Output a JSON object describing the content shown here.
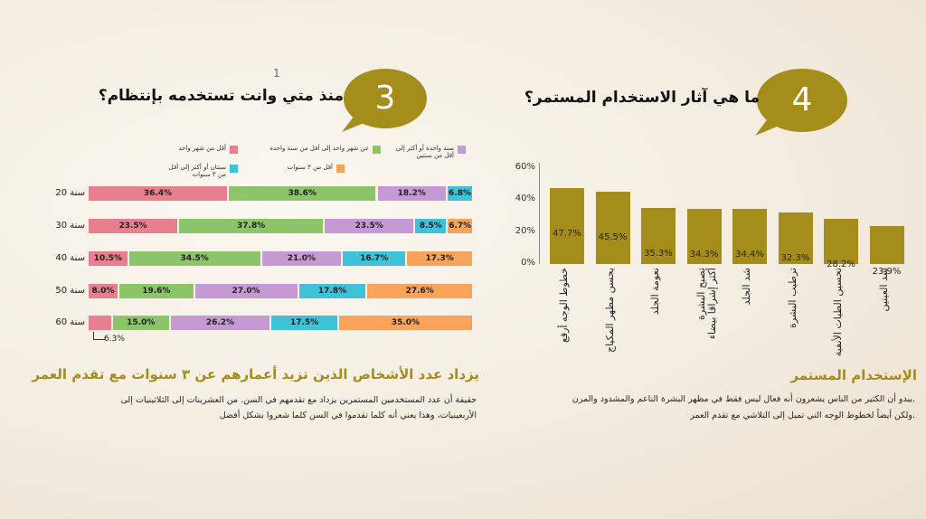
{
  "stray_mark": "1",
  "left_panel": {
    "bubble_number": "3",
    "title": "منذ متي وانت تستخدمه بإنتظام؟",
    "legend": [
      {
        "label": "أقل من شهر واحد",
        "color": "#e77f8e"
      },
      {
        "label": "عن شهر واحد إلى أقل من سنة واحدة",
        "color": "#8cc46a"
      },
      {
        "label": "سنة واحدة أو أكثر إلى أقل من سنتين",
        "color": "#c59ad4"
      },
      {
        "label": "سنتان أو أكثر إلى أقل من ٣ سنوات",
        "color": "#3fc1d8"
      },
      {
        "label": "أقل من ٣ سنوات",
        "color": "#f7a45a"
      }
    ],
    "note_label": "6.3%",
    "heading": "يزداد عدد الأشخاص الذين تزيد أعمارهم عن ٣ سنوات مع تقدم العمر",
    "paragraph": "حقيقة أن عدد المستخدمين المستمرين يزداد مع تقدمهم في السن. من العشرينات إلى الثلاثينيات إلى الأربعينيات، وهذا يعني أنه كلما تقدموا في السن كلما شعروا بشكل أفضل"
  },
  "right_panel": {
    "bubble_number": "4",
    "title": "ما هي آثار الاستخدام المستمر؟",
    "heading": "الإستخدام المستمر",
    "paragraph_line1": ".يبدو أن الكثير من الناس يشعرون أنه فعال ليس فقط في مظهر   البشرة الناعم والمشدود والمرن",
    "paragraph_line2": ".ولكن أيضاً لخطوط الوجه التي تميل إلى التلاشي مع تقدم العمر"
  },
  "chart_data": [
    {
      "type": "bar",
      "stacked": true,
      "orientation": "horizontal",
      "categories": [
        "20 سنة",
        "30 سنة",
        "40 سنة",
        "50 سنة",
        "60 سنة"
      ],
      "series": [
        {
          "name": "أقل من شهر واحد",
          "color": "#e77f8e",
          "values": [
            36.4,
            23.5,
            10.5,
            8.0,
            6.3
          ],
          "labels": [
            "36.4%",
            "23.5%",
            "10.5%",
            "8.0%",
            ""
          ]
        },
        {
          "name": "عن شهر واحد إلى أقل من سنة واحدة",
          "color": "#8cc46a",
          "values": [
            38.6,
            37.8,
            34.5,
            19.6,
            15.0
          ],
          "labels": [
            "38.6%",
            "37.8%",
            "34.5%",
            "19.6%",
            "15.0%"
          ]
        },
        {
          "name": "سنة واحدة أو أكثر إلى أقل من سنتين",
          "color": "#c59ad4",
          "values": [
            18.2,
            23.5,
            21.0,
            27.0,
            26.2
          ],
          "labels": [
            "18.2%",
            "23.5%",
            "21.0%",
            "27.0%",
            "26.2%"
          ]
        },
        {
          "name": "سنتان أو أكثر إلى أقل من ٣ سنوات",
          "color": "#3fc1d8",
          "values": [
            6.8,
            8.5,
            16.7,
            17.8,
            17.5
          ],
          "labels": [
            "6.8%",
            "8.5%",
            "16.7%",
            "17.8%",
            "17.5%"
          ]
        },
        {
          "name": "أقل من ٣ سنوات",
          "color": "#f7a45a",
          "values": [
            0,
            6.7,
            17.3,
            27.6,
            35.0
          ],
          "labels": [
            "",
            "6.7%",
            "17.3%",
            "27.6%",
            "35.0%"
          ]
        }
      ]
    },
    {
      "type": "bar",
      "categories": [
        "خطوط الوجه أرفع",
        "يحسن مظهر المكياج",
        "نعومة الجلد",
        "تصبح البشرة\nأكثر إشراقا بيضاء",
        "شد الجلد",
        "ترطيب البشرة",
        "تحسين الطيات الأنفية",
        "شد العينين"
      ],
      "values": [
        47.7,
        45.5,
        35.3,
        34.3,
        34.4,
        32.3,
        28.2,
        23.9
      ],
      "value_labels": [
        "47.7%",
        "45.5%",
        "35.3%",
        "34.3%",
        "34.4%",
        "32.3%",
        "28.2%",
        "23.9%"
      ],
      "yticks": [
        "0%",
        "20%",
        "40%",
        "60%"
      ],
      "ylim": [
        0,
        60
      ],
      "color": "#a48d1a"
    }
  ]
}
